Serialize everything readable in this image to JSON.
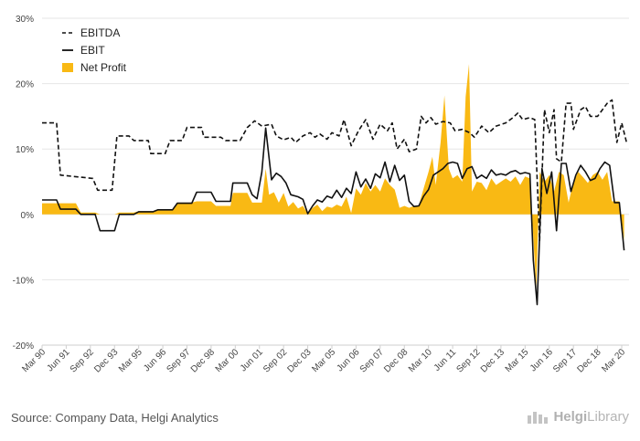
{
  "chart_data": {
    "type": "line",
    "y_ticks": [
      "30%",
      "20%",
      "10%",
      "0%",
      "-10%",
      "-20%"
    ],
    "ylim": [
      -20,
      30
    ],
    "x_ticks": [
      "Mar 90",
      "Jun 91",
      "Sep 92",
      "Dec 93",
      "Mar 95",
      "Jun 96",
      "Sep 97",
      "Dec 98",
      "Mar 00",
      "Jun 01",
      "Sep 02",
      "Dec 03",
      "Mar 05",
      "Jun 06",
      "Sep 07",
      "Dec 08",
      "Mar 10",
      "Jun 11",
      "Sep 12",
      "Dec 13",
      "Mar 15",
      "Jun 16",
      "Sep 17",
      "Dec 18",
      "Mar 20"
    ],
    "x_range": [
      0,
      120
    ],
    "legend_position": "top-left",
    "series": [
      {
        "name": "EBITDA",
        "style": "dashed",
        "color": "#111111",
        "points": [
          [
            0,
            14
          ],
          [
            3,
            14
          ],
          [
            3.8,
            6
          ],
          [
            10.5,
            5.5
          ],
          [
            11.5,
            3.7
          ],
          [
            14.5,
            3.7
          ],
          [
            15.5,
            12
          ],
          [
            18,
            12
          ],
          [
            19,
            11.3
          ],
          [
            22,
            11.3
          ],
          [
            22.5,
            9.3
          ],
          [
            25.5,
            9.3
          ],
          [
            26.5,
            11.3
          ],
          [
            29,
            11.3
          ],
          [
            30,
            13.3
          ],
          [
            33,
            13.3
          ],
          [
            33.5,
            11.8
          ],
          [
            37,
            11.8
          ],
          [
            38,
            11.3
          ],
          [
            41,
            11.3
          ],
          [
            42.5,
            13.3
          ],
          [
            44,
            14.3
          ],
          [
            45.5,
            13.5
          ],
          [
            47.5,
            13.8
          ],
          [
            48.5,
            12
          ],
          [
            50,
            11.4
          ],
          [
            51.5,
            11.8
          ],
          [
            52.5,
            11
          ],
          [
            54,
            12
          ],
          [
            55.5,
            12.5
          ],
          [
            56.5,
            11.8
          ],
          [
            57.5,
            12.3
          ],
          [
            59,
            11.5
          ],
          [
            60,
            12.5
          ],
          [
            61.5,
            12
          ],
          [
            62.5,
            14.5
          ],
          [
            64,
            10.5
          ],
          [
            65.5,
            12.8
          ],
          [
            67,
            14.5
          ],
          [
            68.5,
            11.5
          ],
          [
            70,
            13.8
          ],
          [
            71.5,
            12.8
          ],
          [
            72.5,
            14
          ],
          [
            73.5,
            10
          ],
          [
            75,
            11.5
          ],
          [
            76,
            9.6
          ],
          [
            77.5,
            10
          ],
          [
            78.5,
            15
          ],
          [
            79.5,
            14
          ],
          [
            80.5,
            14.8
          ],
          [
            81.5,
            13.8
          ],
          [
            83,
            14.2
          ],
          [
            84.5,
            14
          ],
          [
            85.5,
            12.8
          ],
          [
            87,
            13
          ],
          [
            88.5,
            12.5
          ],
          [
            89.5,
            11.8
          ],
          [
            91,
            13.5
          ],
          [
            92.5,
            12.5
          ],
          [
            94,
            13.5
          ],
          [
            96,
            14
          ],
          [
            97.5,
            14.8
          ],
          [
            98.5,
            15.5
          ],
          [
            99.5,
            14.5
          ],
          [
            101,
            14.8
          ],
          [
            102,
            14.5
          ],
          [
            103,
            -4
          ],
          [
            104,
            16
          ],
          [
            105,
            12.5
          ],
          [
            106,
            16
          ],
          [
            106.5,
            8.5
          ],
          [
            107.5,
            8
          ],
          [
            108.5,
            17
          ],
          [
            109.5,
            17
          ],
          [
            110,
            13
          ],
          [
            111.5,
            16
          ],
          [
            112.5,
            16.5
          ],
          [
            113.5,
            15
          ],
          [
            115,
            15
          ],
          [
            117,
            17
          ],
          [
            118,
            17.5
          ],
          [
            119,
            11
          ],
          [
            120,
            14
          ],
          [
            121,
            11
          ]
        ]
      },
      {
        "name": "EBIT",
        "style": "solid",
        "color": "#111111",
        "points": [
          [
            0,
            2.2
          ],
          [
            3,
            2.2
          ],
          [
            3.8,
            0.8
          ],
          [
            7,
            0.8
          ],
          [
            8,
            0
          ],
          [
            11,
            0
          ],
          [
            12,
            -2.5
          ],
          [
            15,
            -2.5
          ],
          [
            16,
            0
          ],
          [
            19,
            0
          ],
          [
            20,
            0.4
          ],
          [
            23,
            0.4
          ],
          [
            24,
            0.7
          ],
          [
            27,
            0.7
          ],
          [
            28,
            1.7
          ],
          [
            31,
            1.7
          ],
          [
            32,
            3.4
          ],
          [
            35,
            3.4
          ],
          [
            36,
            2
          ],
          [
            39,
            2
          ],
          [
            39.5,
            4.8
          ],
          [
            42.5,
            4.8
          ],
          [
            43.5,
            3
          ],
          [
            44.5,
            2.4
          ],
          [
            45.5,
            6.5
          ],
          [
            46.3,
            13.2
          ],
          [
            47.5,
            5.3
          ],
          [
            48.5,
            6.3
          ],
          [
            49.5,
            5.8
          ],
          [
            50.5,
            4.8
          ],
          [
            51.5,
            3
          ],
          [
            53,
            2.7
          ],
          [
            54,
            2.3
          ],
          [
            55,
            0.1
          ],
          [
            56,
            1.3
          ],
          [
            57,
            2.2
          ],
          [
            58,
            1.9
          ],
          [
            59,
            2.8
          ],
          [
            60,
            2.5
          ],
          [
            61,
            3.7
          ],
          [
            62,
            2.6
          ],
          [
            63,
            4
          ],
          [
            64,
            3.2
          ],
          [
            65,
            6.5
          ],
          [
            66,
            4.2
          ],
          [
            67,
            5.4
          ],
          [
            68,
            4
          ],
          [
            69,
            6.2
          ],
          [
            70,
            5.6
          ],
          [
            71,
            8
          ],
          [
            72,
            5
          ],
          [
            73,
            7.5
          ],
          [
            74,
            5.2
          ],
          [
            75,
            6
          ],
          [
            76,
            2
          ],
          [
            77,
            1.2
          ],
          [
            78,
            1.3
          ],
          [
            79,
            2.8
          ],
          [
            80,
            3.8
          ],
          [
            81,
            6
          ],
          [
            82,
            6.5
          ],
          [
            83,
            7
          ],
          [
            84,
            7.8
          ],
          [
            85,
            8
          ],
          [
            86,
            7.8
          ],
          [
            87,
            5.5
          ],
          [
            88,
            7
          ],
          [
            89,
            7.3
          ],
          [
            90,
            5.5
          ],
          [
            91,
            6
          ],
          [
            92,
            5.5
          ],
          [
            93,
            6.8
          ],
          [
            94,
            6
          ],
          [
            95,
            6.2
          ],
          [
            96,
            6
          ],
          [
            97,
            6.5
          ],
          [
            98,
            6.7
          ],
          [
            99,
            6.2
          ],
          [
            100,
            6.4
          ],
          [
            101,
            6.2
          ],
          [
            101.7,
            -7
          ],
          [
            102.5,
            -13.8
          ],
          [
            103.5,
            7
          ],
          [
            104.5,
            3.2
          ],
          [
            105.5,
            6.5
          ],
          [
            106.5,
            -2.5
          ],
          [
            107.5,
            7.8
          ],
          [
            108.5,
            7.8
          ],
          [
            109.5,
            3.5
          ],
          [
            110.5,
            6
          ],
          [
            111.5,
            7.5
          ],
          [
            112.5,
            6.5
          ],
          [
            113.5,
            5.2
          ],
          [
            114.5,
            5.5
          ],
          [
            115.5,
            7
          ],
          [
            116.5,
            8
          ],
          [
            117.5,
            7.5
          ],
          [
            118.5,
            1.8
          ],
          [
            119.5,
            1.8
          ],
          [
            120.5,
            -5.5
          ]
        ]
      },
      {
        "name": "Net Profit",
        "style": "area",
        "color": "#f9b914",
        "points": [
          [
            0,
            1.7
          ],
          [
            7,
            1.7
          ],
          [
            8,
            0.3
          ],
          [
            11,
            0.3
          ],
          [
            12,
            0
          ],
          [
            15,
            0
          ],
          [
            16,
            0.3
          ],
          [
            19,
            0.3
          ],
          [
            20,
            0.5
          ],
          [
            23,
            0.5
          ],
          [
            24,
            0.8
          ],
          [
            27,
            0.8
          ],
          [
            28,
            1.8
          ],
          [
            31,
            1.8
          ],
          [
            32,
            2
          ],
          [
            35,
            2
          ],
          [
            36,
            1.3
          ],
          [
            39,
            1.3
          ],
          [
            39.5,
            3.3
          ],
          [
            42.5,
            3.3
          ],
          [
            43.5,
            1.8
          ],
          [
            45.5,
            1.8
          ],
          [
            46.3,
            7
          ],
          [
            47,
            3
          ],
          [
            48,
            3.4
          ],
          [
            49,
            1.8
          ],
          [
            50,
            3.3
          ],
          [
            51,
            1.2
          ],
          [
            52,
            1.9
          ],
          [
            53,
            0.9
          ],
          [
            54,
            1.3
          ],
          [
            55,
            0.1
          ],
          [
            56,
            1
          ],
          [
            57,
            1.5
          ],
          [
            58,
            0.5
          ],
          [
            59,
            1.2
          ],
          [
            60,
            1
          ],
          [
            61,
            1.5
          ],
          [
            62,
            1.2
          ],
          [
            63,
            2.7
          ],
          [
            64,
            0.2
          ],
          [
            65,
            4
          ],
          [
            66,
            3
          ],
          [
            67,
            4.8
          ],
          [
            68,
            3.5
          ],
          [
            69,
            4.5
          ],
          [
            70,
            3.5
          ],
          [
            71,
            5.5
          ],
          [
            72,
            4.5
          ],
          [
            73,
            3.8
          ],
          [
            74,
            1
          ],
          [
            75,
            1.3
          ],
          [
            76,
            1
          ],
          [
            77,
            1.3
          ],
          [
            78,
            1.4
          ],
          [
            79,
            4
          ],
          [
            80,
            6.5
          ],
          [
            80.8,
            8.8
          ],
          [
            81.5,
            4.5
          ],
          [
            82.5,
            11
          ],
          [
            83.3,
            18.2
          ],
          [
            84.2,
            7
          ],
          [
            85,
            5.5
          ],
          [
            86,
            6
          ],
          [
            87,
            5
          ],
          [
            87.7,
            18
          ],
          [
            88.4,
            23
          ],
          [
            89,
            3.5
          ],
          [
            90,
            5
          ],
          [
            91,
            4.8
          ],
          [
            92,
            3.7
          ],
          [
            93,
            5.5
          ],
          [
            94,
            4.5
          ],
          [
            95,
            5
          ],
          [
            96,
            5.5
          ],
          [
            97,
            5
          ],
          [
            98,
            5.8
          ],
          [
            99,
            4.5
          ],
          [
            100,
            5.8
          ],
          [
            101,
            5.5
          ],
          [
            101.7,
            -3.5
          ],
          [
            102.3,
            -11.5
          ],
          [
            103,
            6.5
          ],
          [
            104,
            5
          ],
          [
            105,
            6
          ],
          [
            106,
            3.5
          ],
          [
            107,
            6.5
          ],
          [
            108,
            6
          ],
          [
            109,
            1.8
          ],
          [
            110,
            5
          ],
          [
            111,
            6.5
          ],
          [
            112,
            5.7
          ],
          [
            113,
            4.8
          ],
          [
            114,
            6
          ],
          [
            115,
            6.5
          ],
          [
            116,
            5.3
          ],
          [
            117,
            6.5
          ],
          [
            118,
            2
          ],
          [
            119.5,
            2
          ],
          [
            120.5,
            -4
          ]
        ]
      }
    ]
  },
  "footer": {
    "source": "Source: Company Data, Helgi Analytics",
    "brand_prefix": "Helgi",
    "brand_suffix": "Library"
  }
}
